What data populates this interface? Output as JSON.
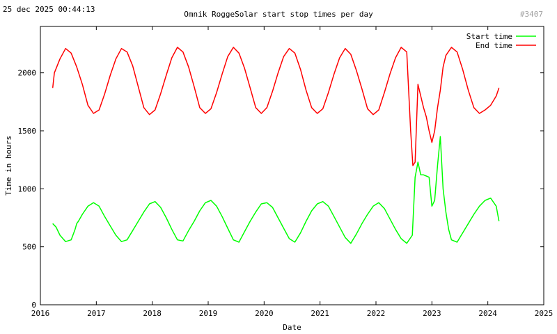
{
  "header": {
    "timestamp": "25 dec 2025 00:44:13",
    "counter": "#3407"
  },
  "colors": {
    "start": "#00ff00",
    "end": "#ff0000"
  },
  "chart_data": {
    "type": "line",
    "title": "Omnik RoggeSolar start stop times per day",
    "xlabel": "Date",
    "ylabel": "Time in hours",
    "xlim": [
      2016,
      2025
    ],
    "ylim": [
      0,
      2400
    ],
    "xticks": [
      "2016",
      "2017",
      "2018",
      "2019",
      "2020",
      "2021",
      "2022",
      "2023",
      "2024",
      "2025"
    ],
    "yticks": [
      "0",
      "500",
      "1000",
      "1500",
      "2000"
    ],
    "legend_position": "top-right",
    "series": [
      {
        "name": "Start time",
        "color": "#00ff00",
        "x": [
          2016.22,
          2016.28,
          2016.35,
          2016.45,
          2016.55,
          2016.62,
          2016.65,
          2016.68,
          2016.75,
          2016.85,
          2016.95,
          2017.05,
          2017.15,
          2017.25,
          2017.35,
          2017.45,
          2017.55,
          2017.65,
          2017.75,
          2017.85,
          2017.95,
          2018.05,
          2018.15,
          2018.25,
          2018.35,
          2018.45,
          2018.55,
          2018.65,
          2018.75,
          2018.85,
          2018.95,
          2019.05,
          2019.15,
          2019.25,
          2019.35,
          2019.45,
          2019.55,
          2019.65,
          2019.75,
          2019.85,
          2019.95,
          2020.05,
          2020.15,
          2020.25,
          2020.35,
          2020.45,
          2020.55,
          2020.65,
          2020.75,
          2020.85,
          2020.95,
          2021.05,
          2021.15,
          2021.25,
          2021.35,
          2021.45,
          2021.55,
          2021.65,
          2021.75,
          2021.85,
          2021.95,
          2022.05,
          2022.15,
          2022.25,
          2022.35,
          2022.45,
          2022.55,
          2022.65,
          2022.7,
          2022.75,
          2022.8,
          2022.85,
          2022.9,
          2022.95,
          2023.0,
          2023.05,
          2023.1,
          2023.15,
          2023.2,
          2023.25,
          2023.3,
          2023.35,
          2023.45,
          2023.55,
          2023.65,
          2023.75,
          2023.85,
          2023.95,
          2024.05,
          2024.15,
          2024.2
        ],
        "y": [
          700,
          670,
          600,
          545,
          560,
          650,
          700,
          720,
          780,
          850,
          880,
          850,
          760,
          680,
          600,
          545,
          560,
          640,
          720,
          800,
          870,
          890,
          840,
          750,
          650,
          560,
          550,
          640,
          720,
          810,
          880,
          900,
          850,
          760,
          660,
          560,
          540,
          630,
          720,
          800,
          870,
          880,
          840,
          750,
          660,
          570,
          540,
          620,
          720,
          810,
          870,
          890,
          850,
          760,
          670,
          580,
          530,
          610,
          700,
          780,
          850,
          880,
          830,
          740,
          650,
          570,
          530,
          600,
          1100,
          1230,
          1120,
          1120,
          1110,
          1100,
          850,
          900,
          1200,
          1450,
          1000,
          800,
          650,
          560,
          540,
          620,
          700,
          780,
          850,
          900,
          920,
          850,
          720
        ]
      },
      {
        "name": "End time",
        "color": "#ff0000",
        "x": [
          2016.22,
          2016.25,
          2016.35,
          2016.45,
          2016.55,
          2016.65,
          2016.75,
          2016.85,
          2016.95,
          2017.05,
          2017.15,
          2017.25,
          2017.35,
          2017.45,
          2017.55,
          2017.65,
          2017.75,
          2017.85,
          2017.95,
          2018.05,
          2018.15,
          2018.25,
          2018.35,
          2018.45,
          2018.55,
          2018.65,
          2018.75,
          2018.85,
          2018.95,
          2019.05,
          2019.15,
          2019.25,
          2019.35,
          2019.45,
          2019.55,
          2019.65,
          2019.75,
          2019.85,
          2019.95,
          2020.05,
          2020.15,
          2020.25,
          2020.35,
          2020.45,
          2020.55,
          2020.65,
          2020.75,
          2020.85,
          2020.95,
          2021.05,
          2021.15,
          2021.25,
          2021.35,
          2021.45,
          2021.55,
          2021.65,
          2021.75,
          2021.85,
          2021.95,
          2022.05,
          2022.15,
          2022.25,
          2022.35,
          2022.45,
          2022.55,
          2022.62,
          2022.66,
          2022.7,
          2022.75,
          2022.8,
          2022.85,
          2022.9,
          2022.95,
          2023.0,
          2023.05,
          2023.1,
          2023.15,
          2023.2,
          2023.25,
          2023.35,
          2023.45,
          2023.55,
          2023.65,
          2023.75,
          2023.85,
          2023.95,
          2024.05,
          2024.15,
          2024.2
        ],
        "y": [
          1870,
          2000,
          2120,
          2210,
          2170,
          2050,
          1900,
          1720,
          1650,
          1680,
          1820,
          1980,
          2120,
          2210,
          2180,
          2060,
          1880,
          1700,
          1640,
          1680,
          1820,
          1980,
          2130,
          2220,
          2180,
          2050,
          1880,
          1700,
          1650,
          1690,
          1830,
          1990,
          2140,
          2220,
          2170,
          2040,
          1870,
          1700,
          1650,
          1700,
          1840,
          2000,
          2140,
          2210,
          2170,
          2030,
          1850,
          1700,
          1650,
          1690,
          1830,
          1990,
          2130,
          2210,
          2160,
          2020,
          1860,
          1690,
          1640,
          1680,
          1830,
          1990,
          2130,
          2220,
          2180,
          1500,
          1200,
          1230,
          1900,
          1800,
          1700,
          1620,
          1500,
          1400,
          1500,
          1700,
          1850,
          2050,
          2150,
          2220,
          2180,
          2030,
          1850,
          1700,
          1650,
          1680,
          1720,
          1800,
          1870
        ]
      }
    ]
  }
}
